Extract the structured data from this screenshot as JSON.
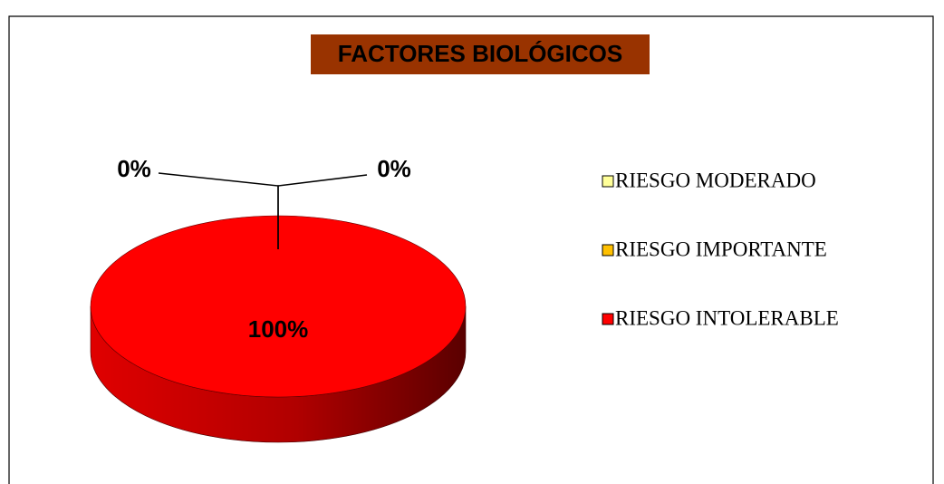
{
  "chart_data": {
    "type": "pie",
    "title": "FACTORES BIOLÓGICOS",
    "categories": [
      "RIESGO MODERADO",
      "RIESGO IMPORTANTE",
      "RIESGO INTOLERABLE"
    ],
    "values": [
      0,
      0,
      100
    ],
    "value_labels": [
      "0%",
      "0%",
      "100%"
    ],
    "colors": [
      "#ffff99",
      "#ffc000",
      "#ff0000"
    ],
    "legend": "right"
  }
}
